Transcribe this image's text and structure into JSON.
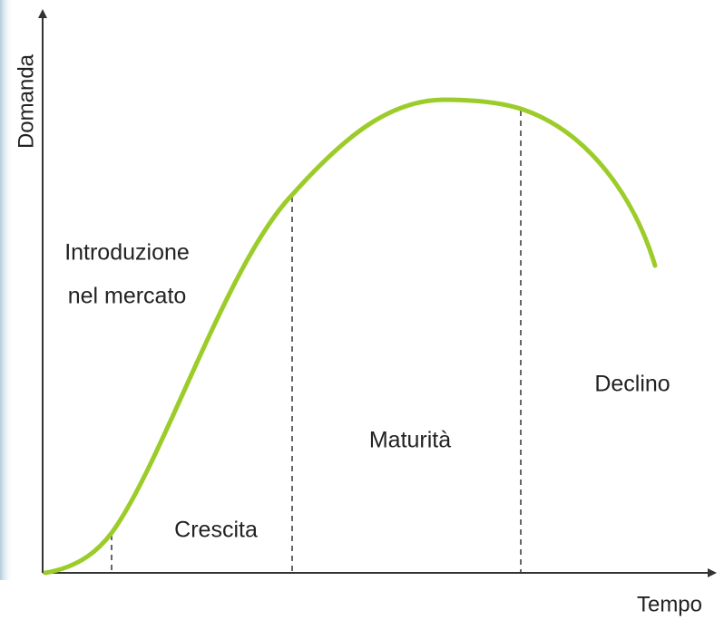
{
  "axes": {
    "y_label": "Domanda",
    "x_label": "Tempo"
  },
  "stages": [
    {
      "lines": [
        "Introduzione",
        "nel mercato"
      ]
    },
    {
      "lines": [
        "Crescita"
      ]
    },
    {
      "lines": [
        "Maturità"
      ]
    },
    {
      "lines": [
        "Declino"
      ]
    }
  ]
}
